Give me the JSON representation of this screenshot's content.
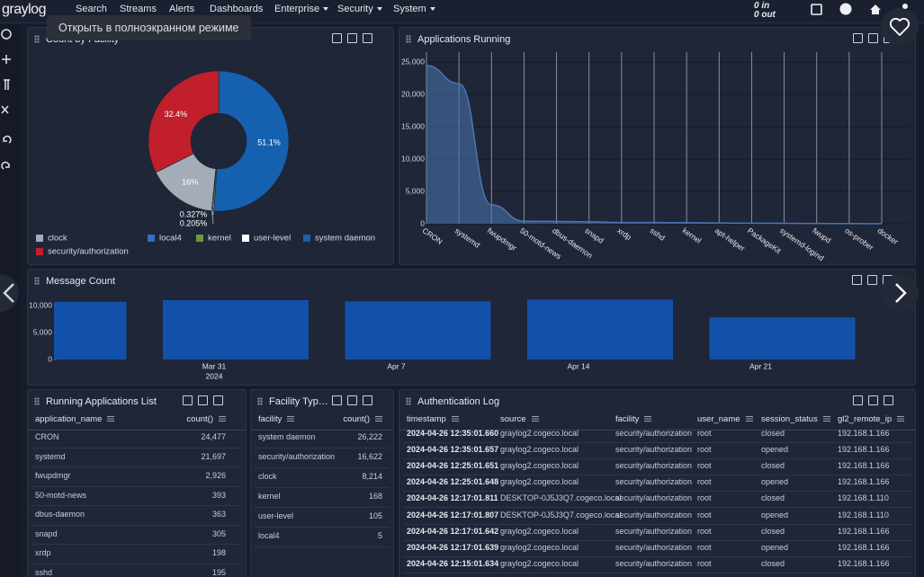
{
  "nav": {
    "brand": "graylog",
    "items": [
      "Search",
      "Streams",
      "Alerts",
      "Dashboards",
      "Enterprise",
      "Security",
      "System"
    ],
    "throughput_in": "0 in",
    "throughput_out": "0 out"
  },
  "tooltip": "Открыть в полноэкранном режиме",
  "chart_data": [
    {
      "type": "pie",
      "title": "Count by Facility",
      "categories": [
        "clock",
        "local4",
        "kernel",
        "user-level",
        "system daemon",
        "security/authorization"
      ],
      "values": [
        16,
        0.01,
        0.327,
        0.205,
        51.1,
        32.4
      ],
      "value_labels": [
        "16%",
        null,
        "0.327%",
        "0.205%",
        "51.1%",
        "32.4%"
      ],
      "colors": [
        "#a3acb7",
        "#2f6fc4",
        "#6b9a3c",
        "#ffffff",
        "#1660b0",
        "#c11f2b"
      ]
    },
    {
      "type": "area",
      "title": "Applications Running",
      "categories": [
        "CRON",
        "systemd",
        "fwupdmgr",
        "50-motd-news",
        "dbus-daemon",
        "snapd",
        "xrdp",
        "sshd",
        "kernel",
        "apt-helper",
        "PackageKit",
        "systemd-logind",
        "fwupd",
        "os-prober",
        "docker"
      ],
      "values": [
        24477,
        21697,
        2926,
        393,
        363,
        305,
        198,
        195,
        168,
        120,
        90,
        70,
        50,
        30,
        20
      ],
      "color": "#4a76b4",
      "ylim": [
        0,
        26000
      ],
      "yticks": [
        0,
        {
          "value": 5000,
          "label": "5,000"
        },
        {
          "value": 10000,
          "label": "10,000"
        },
        {
          "value": 15000,
          "label": "15,000"
        },
        {
          "value": 20000,
          "label": "20,000"
        },
        {
          "value": 25000,
          "label": "25,000"
        }
      ],
      "grid": true
    },
    {
      "type": "bar",
      "title": "Message Count",
      "categories": [
        null,
        "Mar 31",
        "Apr 7",
        "Apr 14",
        "Apr 21"
      ],
      "year": "2024",
      "values": [
        10700,
        11000,
        10800,
        11100,
        7800
      ],
      "color": "#1350a9",
      "ylim": [
        0,
        11500
      ],
      "yticks": [
        0,
        {
          "value": 5000,
          "label": "5,000"
        },
        {
          "value": 10000,
          "label": "10,000"
        }
      ]
    }
  ],
  "tables": [
    {
      "title": "Running Applications List",
      "columns": [
        "application_name",
        "count()"
      ],
      "rows": [
        [
          "CRON",
          "24,477"
        ],
        [
          "systemd",
          "21,697"
        ],
        [
          "fwupdmgr",
          "2,926"
        ],
        [
          "50-motd-news",
          "393"
        ],
        [
          "dbus-daemon",
          "363"
        ],
        [
          "snapd",
          "305"
        ],
        [
          "xrdp",
          "198"
        ],
        [
          "sshd",
          "195"
        ]
      ]
    },
    {
      "title": "Facility Typ…",
      "columns": [
        "facility",
        "count()"
      ],
      "rows": [
        [
          "system daemon",
          "26,222"
        ],
        [
          "security/authorization",
          "16,622"
        ],
        [
          "clock",
          "8,214"
        ],
        [
          "kernel",
          "168"
        ],
        [
          "user-level",
          "105"
        ],
        [
          "local4",
          "5"
        ]
      ]
    },
    {
      "title": "Authentication Log",
      "columns": [
        "timestamp",
        "source",
        "facility",
        "user_name",
        "session_status",
        "gl2_remote_ip"
      ],
      "rows": [
        [
          "2024-04-26 12:35:01.660",
          "graylog2.cogeco.local",
          "security/authorization",
          "root",
          "closed",
          "192.168.1.166"
        ],
        [
          "2024-04-26 12:35:01.657",
          "graylog2.cogeco.local",
          "security/authorization",
          "root",
          "opened",
          "192.168.1.166"
        ],
        [
          "2024-04-26 12:25:01.651",
          "graylog2.cogeco.local",
          "security/authorization",
          "root",
          "closed",
          "192.168.1.166"
        ],
        [
          "2024-04-26 12:25:01.648",
          "graylog2.cogeco.local",
          "security/authorization",
          "root",
          "opened",
          "192.168.1.166"
        ],
        [
          "2024-04-26 12:17:01.811",
          "DESKTOP-0J5J3Q7.cogeco.local",
          "security/authorization",
          "root",
          "closed",
          "192.168.1.110"
        ],
        [
          "2024-04-26 12:17:01.807",
          "DESKTOP-0J5J3Q7.cogeco.local",
          "security/authorization",
          "root",
          "opened",
          "192.168.1.110"
        ],
        [
          "2024-04-26 12:17:01.642",
          "graylog2.cogeco.local",
          "security/authorization",
          "root",
          "closed",
          "192.168.1.166"
        ],
        [
          "2024-04-26 12:17:01.639",
          "graylog2.cogeco.local",
          "security/authorization",
          "root",
          "opened",
          "192.168.1.166"
        ],
        [
          "2024-04-26 12:15:01.634",
          "graylog2.cogeco.local",
          "security/authorization",
          "root",
          "closed",
          "192.168.1.166"
        ]
      ]
    }
  ]
}
